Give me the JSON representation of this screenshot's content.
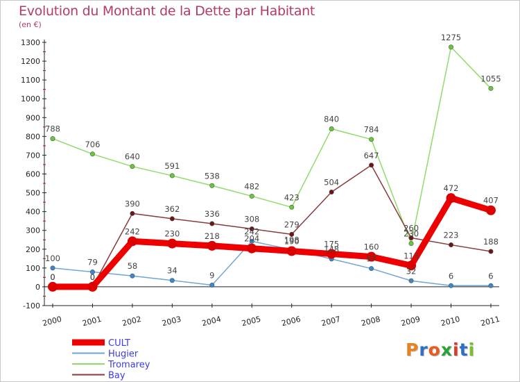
{
  "header": {
    "title": "Evolution du Montant de la Dette par Habitant",
    "subtitle": "(en €)"
  },
  "logo": {
    "letters": [
      "P",
      "r",
      "o",
      "x",
      "i",
      "t",
      "i"
    ],
    "colors": [
      "#e8821e",
      "#2f6fc4",
      "#e85a1e",
      "#2aa23a",
      "#d63c2a",
      "#2f6fc4",
      "#7cbf2a"
    ]
  },
  "chart_data": {
    "type": "line",
    "title": "Evolution du Montant de la Dette par Habitant",
    "subtitle": "(en €)",
    "x": [
      "2000",
      "2001",
      "2002",
      "2003",
      "2004",
      "2005",
      "2006",
      "2007",
      "2008",
      "2009",
      "2010",
      "2011"
    ],
    "ylim": [
      -100,
      1300
    ],
    "yticks": [
      -100,
      0,
      100,
      200,
      300,
      400,
      500,
      600,
      700,
      800,
      900,
      1000,
      1100,
      1200,
      1300
    ],
    "grid": false,
    "legend_position": "bottom-left",
    "series": [
      {
        "name": "CULT",
        "color": "#ee0000",
        "marker_color": "#dd0000",
        "thick": true,
        "values": [
          0,
          0,
          242,
          230,
          218,
          204,
          190,
          175,
          160,
          113,
          472,
          407
        ],
        "labels": [
          "0",
          "0",
          "242",
          "230",
          "218",
          "204",
          "190",
          "175",
          "160",
          "113",
          "472",
          "407"
        ]
      },
      {
        "name": "Hugier",
        "color": "#6ea6d6",
        "marker_color": "#3a88cc",
        "thick": false,
        "values": [
          100,
          79,
          58,
          34,
          9,
          242,
          198,
          148,
          97,
          32,
          6,
          6
        ],
        "labels": [
          "100",
          "79",
          "58",
          "34",
          "9",
          "242",
          "198",
          "148",
          "97",
          "32",
          "6",
          "6"
        ]
      },
      {
        "name": "Tromarey",
        "color": "#8fdc6a",
        "marker_color": "#66c83a",
        "thick": false,
        "values": [
          788,
          706,
          640,
          591,
          538,
          482,
          423,
          840,
          784,
          230,
          1275,
          1055
        ],
        "labels": [
          "788",
          "706",
          "640",
          "591",
          "538",
          "482",
          "423",
          "840",
          "784",
          "230",
          "1275",
          "1055"
        ]
      },
      {
        "name": "Bay",
        "color": "#8a3a3a",
        "marker_color": "#6e1414",
        "thick": false,
        "values": [
          0,
          0,
          390,
          362,
          336,
          308,
          279,
          504,
          647,
          260,
          223,
          188
        ],
        "labels": [
          "0",
          "0",
          "390",
          "362",
          "336",
          "308",
          "279",
          "504",
          "647",
          "260",
          "223",
          "188"
        ]
      }
    ]
  }
}
